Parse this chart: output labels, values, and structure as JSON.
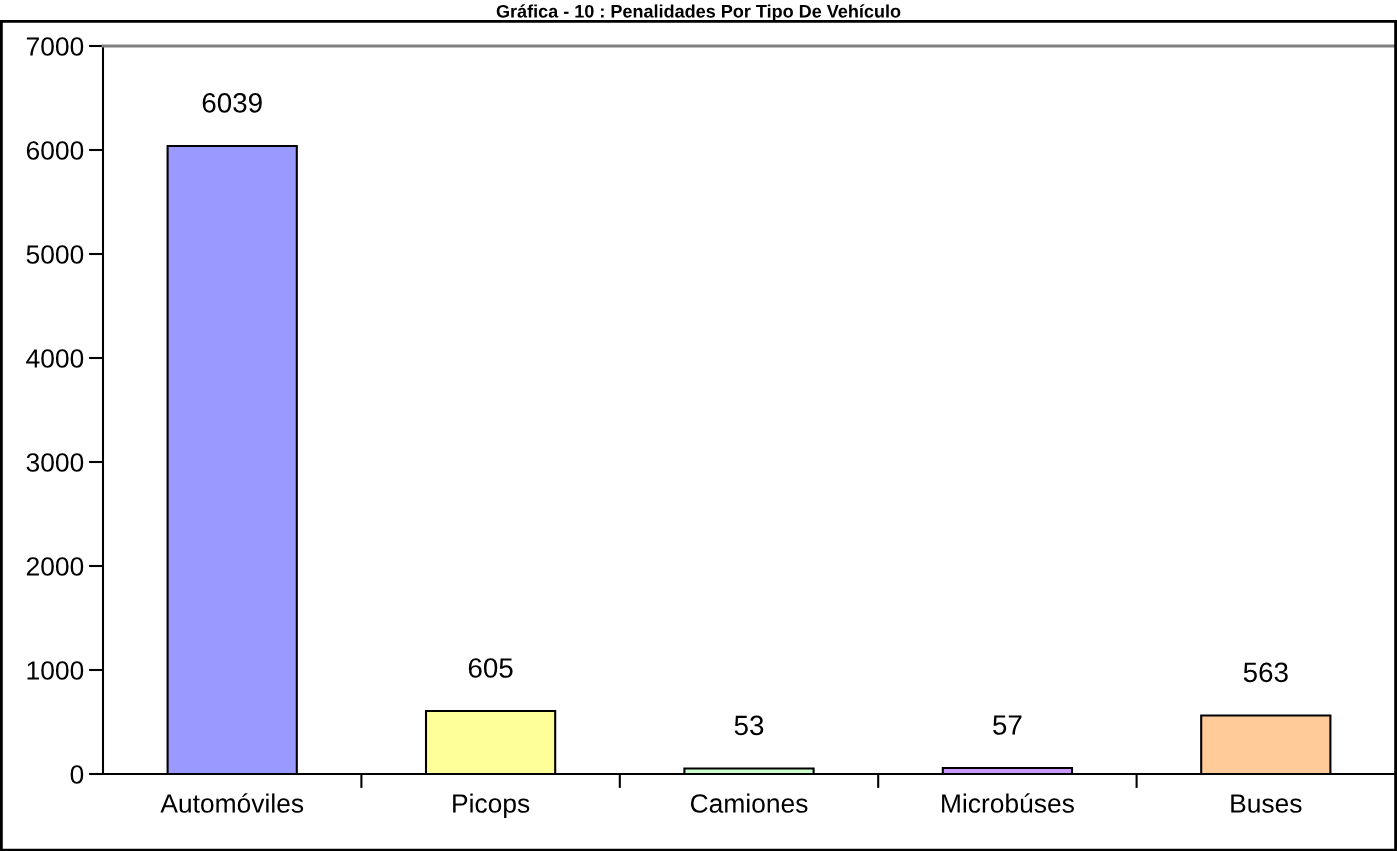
{
  "chart_data": {
    "type": "bar",
    "title": "Gráfica - 10 : Penalidades Por Tipo De Vehículo",
    "categories": [
      "Automóviles",
      "Picops",
      "Camiones",
      "Microbúses",
      "Buses"
    ],
    "values": [
      6039,
      605,
      53,
      57,
      563
    ],
    "colors": [
      "#9999ff",
      "#ffff99",
      "#ccffcc",
      "#cc99ff",
      "#ffcc99"
    ],
    "ylim": [
      0,
      7000
    ],
    "yticks": [
      0,
      1000,
      2000,
      3000,
      4000,
      5000,
      6000,
      7000
    ],
    "data_labels": true,
    "grid": false,
    "legend": false
  }
}
